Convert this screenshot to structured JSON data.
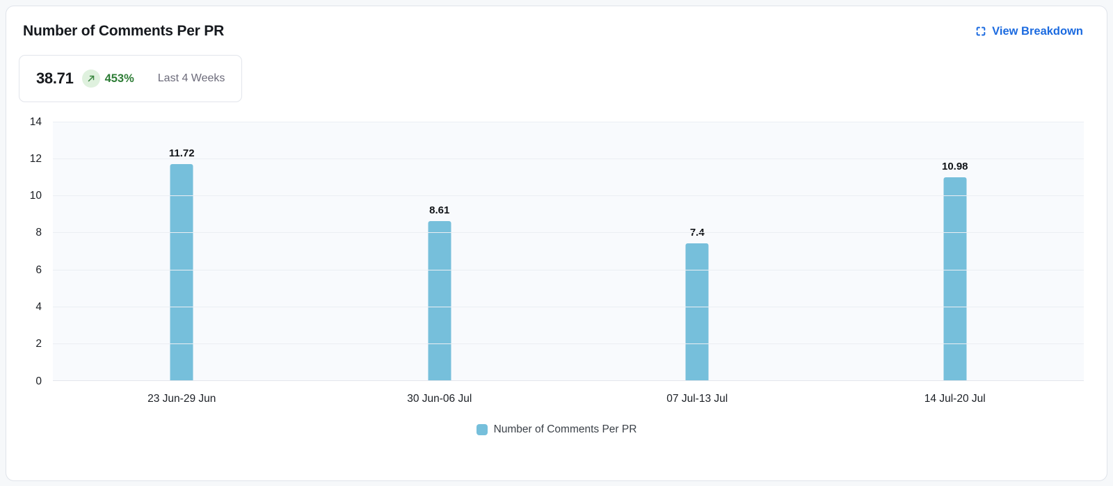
{
  "header": {
    "title": "Number of Comments Per PR",
    "breakdown_label": "View Breakdown",
    "link_color": "#1c6be0",
    "icons": {
      "breakdown": "expand-corners-icon"
    }
  },
  "summary": {
    "value": "38.71",
    "change": "453%",
    "period": "Last 4 Weeks",
    "trend": "up",
    "change_color": "#2e7d36",
    "badge_bg": "#dff1de",
    "icons": {
      "trend": "arrow-up-right-icon"
    }
  },
  "chart_data": {
    "type": "bar",
    "title": "Number of Comments Per PR",
    "categories": [
      "23 Jun-29 Jun",
      "30 Jun-06 Jul",
      "07 Jul-13 Jul",
      "14 Jul-20 Jul"
    ],
    "values": [
      11.72,
      8.61,
      7.4,
      10.98
    ],
    "value_labels": [
      "11.72",
      "8.61",
      "7.4",
      "10.98"
    ],
    "xlabel": "",
    "ylabel": "",
    "ylim": [
      0,
      14
    ],
    "yticks": [
      0,
      2,
      4,
      6,
      8,
      10,
      12,
      14
    ],
    "grid": true,
    "legend": "Number of Comments Per PR",
    "legend_position": "bottom",
    "bar_color": "#76bfdb",
    "plot_bg": "#f8fafd"
  }
}
